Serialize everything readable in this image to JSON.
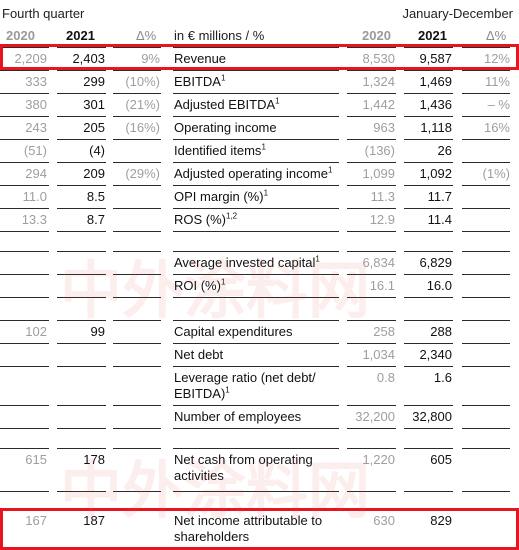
{
  "header": {
    "left": "Fourth quarter",
    "right": "January-December"
  },
  "columns": {
    "q2020": "2020",
    "q2021": "2021",
    "qdelta": "Δ%",
    "metric": "in € millions / %",
    "fy2020": "2020",
    "fy2021": "2021",
    "fydelta": "Δ%"
  },
  "rows": [
    {
      "q2020": "2,209",
      "q2021": "2,403",
      "qd": "9%",
      "label": "Revenue",
      "sup": "",
      "f2020": "8,530",
      "f2021": "9,587",
      "fd": "12%"
    },
    {
      "q2020": "333",
      "q2021": "299",
      "qd": "(10%)",
      "label": "EBITDA",
      "sup": "1",
      "f2020": "1,324",
      "f2021": "1,469",
      "fd": "11%"
    },
    {
      "q2020": "380",
      "q2021": "301",
      "qd": "(21%)",
      "label": "Adjusted EBITDA",
      "sup": "1",
      "f2020": "1,442",
      "f2021": "1,436",
      "fd": "– %"
    },
    {
      "q2020": "243",
      "q2021": "205",
      "qd": "(16%)",
      "label": "Operating income",
      "sup": "",
      "f2020": "963",
      "f2021": "1,118",
      "fd": "16%"
    },
    {
      "q2020": "(51)",
      "q2021": "(4)",
      "qd": "",
      "label": "Identified items",
      "sup": "1",
      "f2020": "(136)",
      "f2021": "26",
      "fd": ""
    },
    {
      "q2020": "294",
      "q2021": "209",
      "qd": "(29%)",
      "label": "Adjusted operating income",
      "sup": "1",
      "f2020": "1,099",
      "f2021": "1,092",
      "fd": "(1%)"
    },
    {
      "q2020": "11.0",
      "q2021": "8.5",
      "qd": "",
      "label": "OPI margin (%)",
      "sup": "1",
      "f2020": "11.3",
      "f2021": "11.7",
      "fd": ""
    },
    {
      "q2020": "13.3",
      "q2021": "8.7",
      "qd": "",
      "label": "ROS (%)",
      "sup": "1,2",
      "f2020": "12.9",
      "f2021": "11.4",
      "fd": ""
    },
    {
      "q2020": "",
      "q2021": "",
      "qd": "",
      "label": "",
      "sup": "",
      "f2020": "",
      "f2021": "",
      "fd": ""
    },
    {
      "q2020": "",
      "q2021": "",
      "qd": "",
      "label": "Average invested capital",
      "sup": "1",
      "f2020": "6,834",
      "f2021": "6,829",
      "fd": ""
    },
    {
      "q2020": "",
      "q2021": "",
      "qd": "",
      "label": "ROI (%)",
      "sup": "1",
      "f2020": "16.1",
      "f2021": "16.0",
      "fd": ""
    },
    {
      "q2020": "",
      "q2021": "",
      "qd": "",
      "label": "",
      "sup": "",
      "f2020": "",
      "f2021": "",
      "fd": ""
    },
    {
      "q2020": "102",
      "q2021": "99",
      "qd": "",
      "label": "Capital expenditures",
      "sup": "",
      "f2020": "258",
      "f2021": "288",
      "fd": ""
    },
    {
      "q2020": "",
      "q2021": "",
      "qd": "",
      "label": "Net debt",
      "sup": "",
      "f2020": "1,034",
      "f2021": "2,340",
      "fd": ""
    },
    {
      "q2020": "",
      "q2021": "",
      "qd": "",
      "label": "Leverage ratio (net debt/ EBITDA)",
      "sup": "1",
      "f2020": "0.8",
      "f2021": "1.6",
      "fd": ""
    },
    {
      "q2020": "",
      "q2021": "",
      "qd": "",
      "label": "Number of employees",
      "sup": "",
      "f2020": "32,200",
      "f2021": "32,800",
      "fd": ""
    },
    {
      "q2020": "",
      "q2021": "",
      "qd": "",
      "label": "",
      "sup": "",
      "f2020": "",
      "f2021": "",
      "fd": ""
    },
    {
      "q2020": "615",
      "q2021": "178",
      "qd": "",
      "label": "Net cash from operating activities",
      "sup": "",
      "f2020": "1,220",
      "f2021": "605",
      "fd": ""
    },
    {
      "q2020": "",
      "q2021": "",
      "qd": "",
      "label": "",
      "sup": "",
      "f2020": "",
      "f2021": "",
      "fd": ""
    },
    {
      "q2020": "167",
      "q2021": "187",
      "qd": "",
      "label": "Net income attributable to shareholders",
      "sup": "",
      "f2020": "630",
      "f2021": "829",
      "fd": ""
    }
  ],
  "watermark": {
    "text": "中外涂料网",
    "color": "#eb5a5a"
  },
  "highlight_color": "#e6151f"
}
